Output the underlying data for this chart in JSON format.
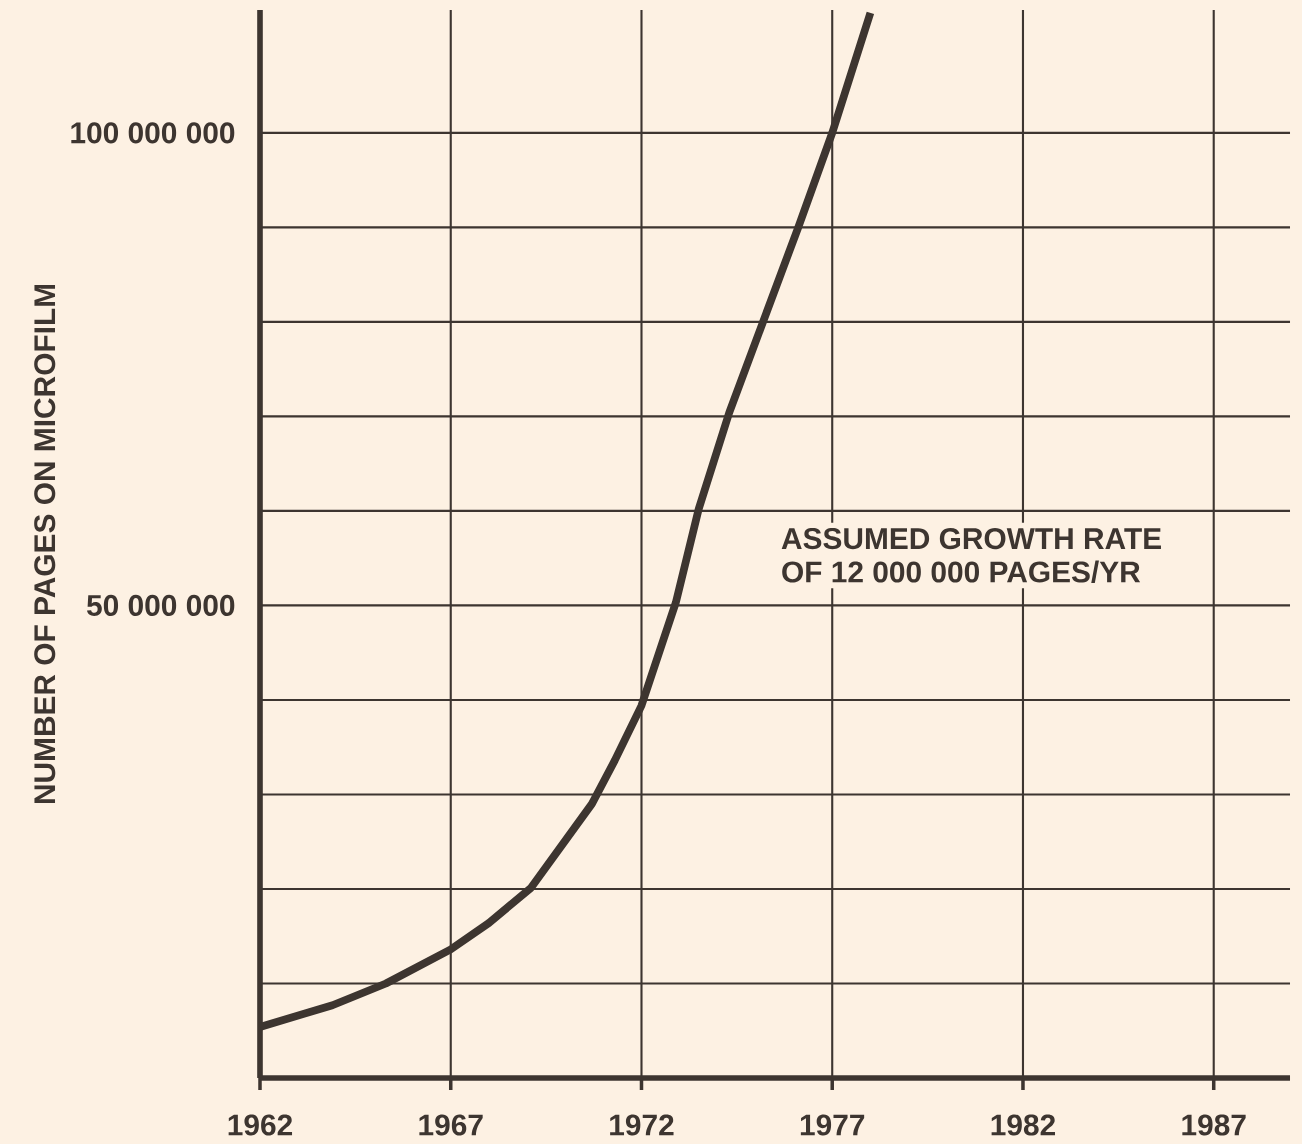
{
  "chart_data": {
    "type": "line",
    "ylabel": "NUMBER OF PAGES ON MICROFILM",
    "annotations": [
      "ASSUMED GROWTH RATE",
      "OF 12 000 000 PAGES/YR"
    ],
    "series": [
      {
        "color": "#3d3530",
        "x": [
          1962,
          1963.9,
          1965.3,
          1967,
          1968,
          1969.1,
          1970.7,
          1971.3,
          1972,
          1972.9,
          1973.5,
          1974.3,
          1976.1,
          1977,
          1978
        ],
        "values": [
          5400000,
          7700000,
          10000000,
          13600000,
          16400000,
          20100000,
          29000000,
          33600000,
          39400000,
          50300000,
          60200000,
          70400000,
          89900000,
          100000000,
          112700000
        ]
      }
    ],
    "xlim": [
      1962,
      1989
    ],
    "ylim": [
      0,
      113000000
    ],
    "xticks": [
      1962,
      1967,
      1972,
      1977,
      1982,
      1987
    ],
    "yticks": [
      {
        "value": 10000000,
        "label": null
      },
      {
        "value": 20000000,
        "label": null
      },
      {
        "value": 30000000,
        "label": null
      },
      {
        "value": 40000000,
        "label": null
      },
      {
        "value": 50000000,
        "label": "50 000 000"
      },
      {
        "value": 60000000,
        "label": null
      },
      {
        "value": 70000000,
        "label": null
      },
      {
        "value": 80000000,
        "label": null
      },
      {
        "value": 90000000,
        "label": null
      },
      {
        "value": 100000000,
        "label": "100 000 000"
      }
    ],
    "grid": true,
    "line_style": "solid",
    "marker": "none"
  }
}
